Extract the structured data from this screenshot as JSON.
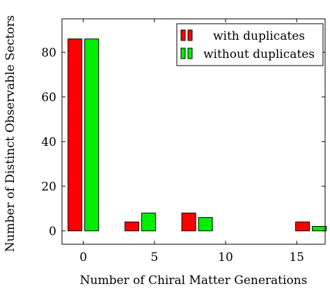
{
  "chart_data": {
    "type": "bar",
    "xlabel": "Number of Chiral Matter Generations",
    "ylabel": "Number of Distinct Observable Sectors",
    "xlim": [
      -1.5,
      17
    ],
    "ylim": [
      -6,
      95
    ],
    "xticks": [
      0,
      5,
      10,
      15
    ],
    "yticks": [
      0,
      20,
      40,
      60,
      80
    ],
    "grid": false,
    "legend_position": "top-right",
    "series": [
      {
        "name": "with duplicates",
        "color": "#ff0000",
        "x": [
          0,
          4,
          8,
          16
        ],
        "values": [
          86,
          4,
          8,
          4
        ]
      },
      {
        "name": "without duplicates",
        "color": "#00ee00",
        "x": [
          0,
          4,
          8,
          16
        ],
        "values": [
          86,
          8,
          6,
          2
        ]
      }
    ]
  }
}
